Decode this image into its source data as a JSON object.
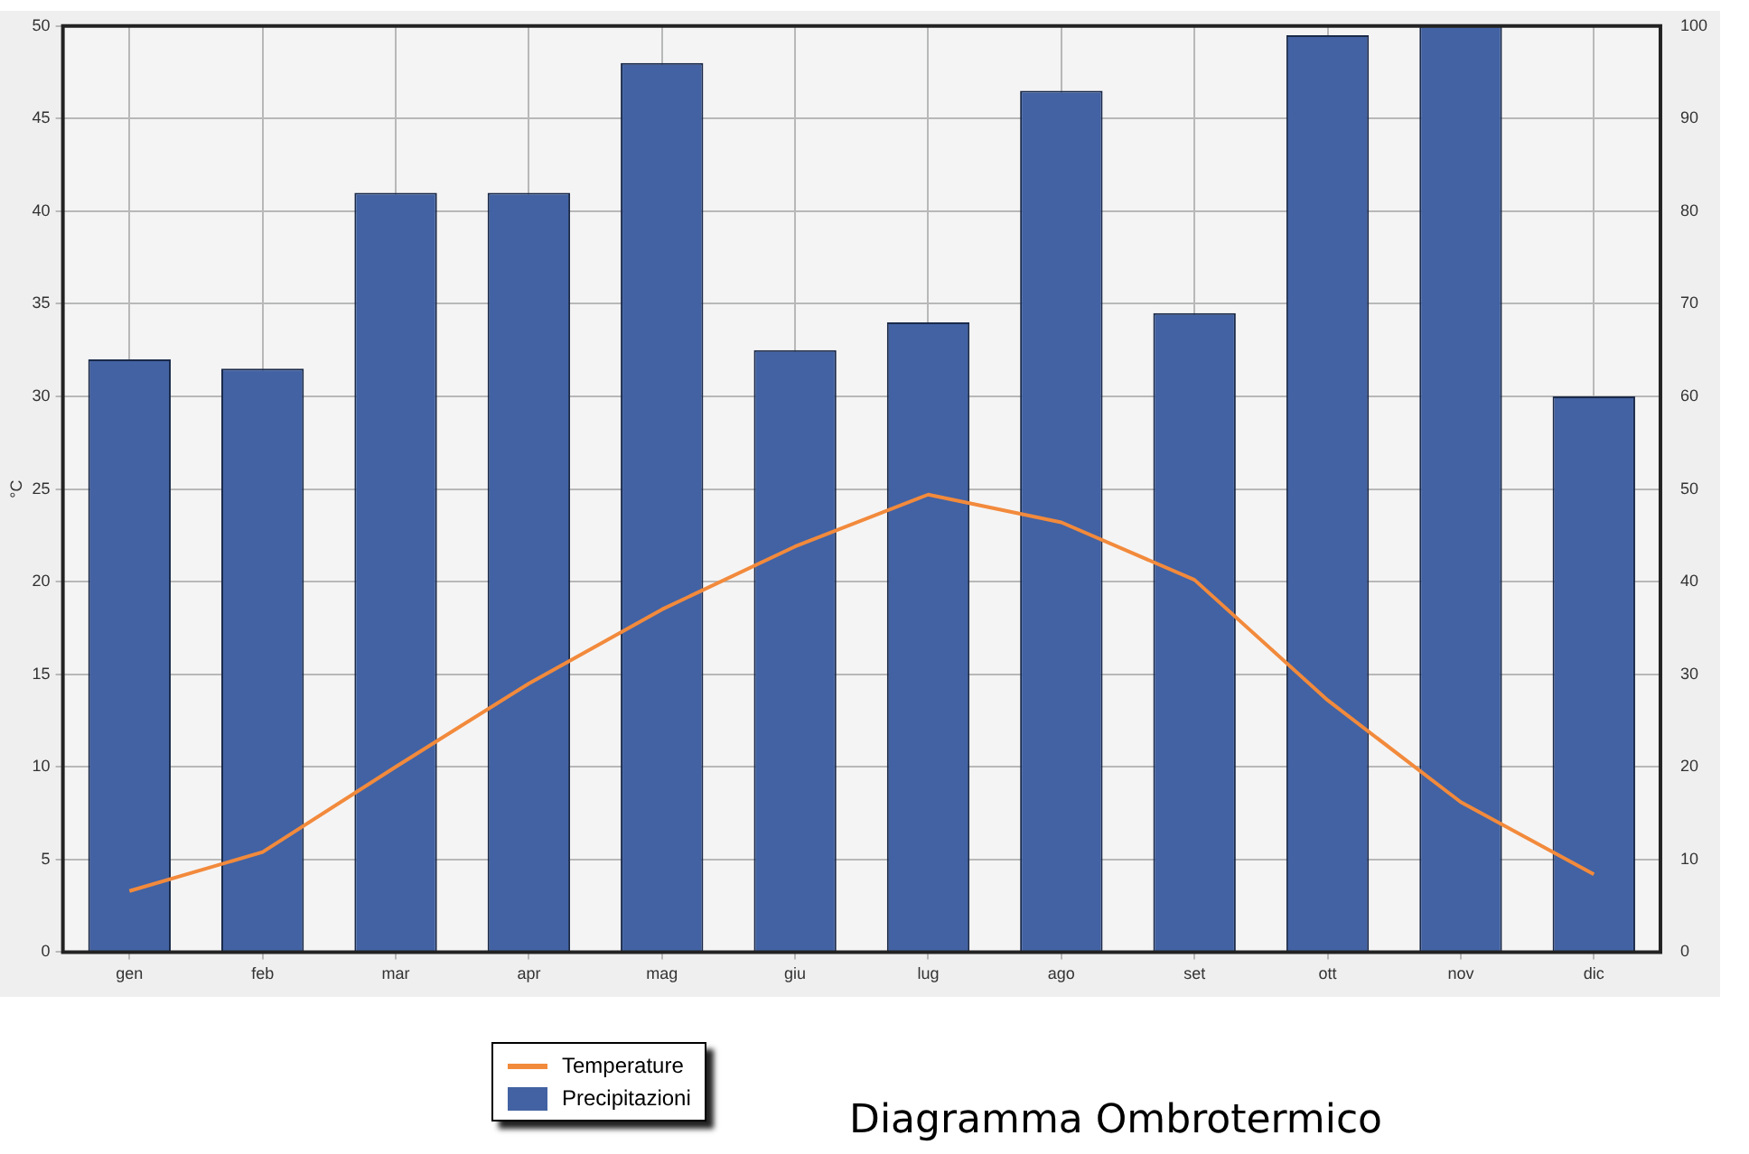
{
  "chart_data": {
    "type": "bar",
    "title": "Diagramma Ombrotermico",
    "ylabel": "°C",
    "categories": [
      "gen",
      "feb",
      "mar",
      "apr",
      "mag",
      "giu",
      "lug",
      "ago",
      "set",
      "ott",
      "nov",
      "dic"
    ],
    "series": [
      {
        "name": "Temperature",
        "type": "line",
        "color": "#f28a3c",
        "values": [
          3.3,
          5.4,
          10,
          14.5,
          18.5,
          21.9,
          24.7,
          23.2,
          20.1,
          13.6,
          8.1,
          4.2
        ]
      },
      {
        "name": "Precipitazioni",
        "axis": "y2",
        "color": "#4262a3",
        "values": [
          64,
          63,
          82,
          82,
          96,
          65,
          68,
          93,
          69,
          99,
          100,
          60
        ]
      }
    ],
    "ylim": [
      0,
      50
    ],
    "yticks": [
      0,
      5,
      10,
      15,
      20,
      25,
      30,
      35,
      40,
      45,
      50
    ],
    "y2lim": [
      0,
      100
    ],
    "y2ticks": [
      0,
      10,
      20,
      30,
      40,
      50,
      60,
      70,
      80,
      90,
      100
    ],
    "grid": true,
    "legend": "bottom",
    "marker": "none"
  }
}
